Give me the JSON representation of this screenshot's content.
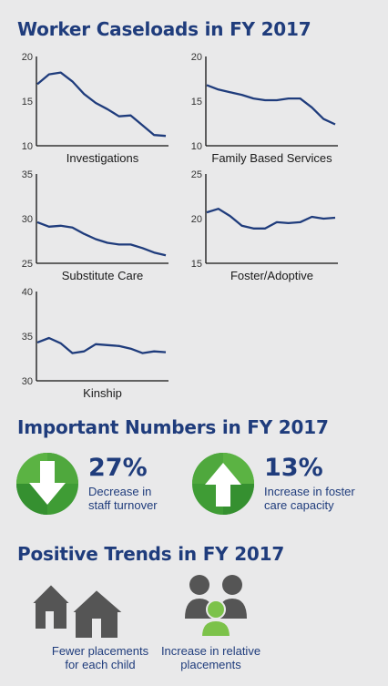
{
  "sections": {
    "caseloads_title": "Worker Caseloads in FY 2017",
    "numbers_title": "Important Numbers in FY 2017",
    "trends_title": "Positive Trends in FY 2017"
  },
  "chart_data": [
    {
      "type": "line",
      "title": "Investigations",
      "ylim": [
        10,
        20
      ],
      "yticks": [
        "20",
        "15",
        "10"
      ],
      "values": [
        16.9,
        18.0,
        18.2,
        17.2,
        15.8,
        14.8,
        14.1,
        13.3,
        13.4,
        12.3,
        11.2,
        11.1
      ],
      "color": "#1f3c7c"
    },
    {
      "type": "line",
      "title": "Family Based Services",
      "ylim": [
        10,
        20
      ],
      "yticks": [
        "20",
        "15",
        "10"
      ],
      "values": [
        16.8,
        16.3,
        16.0,
        15.7,
        15.3,
        15.1,
        15.1,
        15.3,
        15.3,
        14.3,
        13.0,
        12.4
      ],
      "color": "#1f3c7c"
    },
    {
      "type": "line",
      "title": "Substitute Care",
      "ylim": [
        25,
        35
      ],
      "yticks": [
        "35",
        "30",
        "25"
      ],
      "values": [
        29.6,
        29.1,
        29.2,
        29.0,
        28.3,
        27.7,
        27.3,
        27.1,
        27.1,
        26.7,
        26.2,
        25.9
      ],
      "color": "#1f3c7c"
    },
    {
      "type": "line",
      "title": "Foster/Adoptive",
      "ylim": [
        15,
        25
      ],
      "yticks": [
        "25",
        "20",
        "15"
      ],
      "values": [
        20.7,
        21.1,
        20.3,
        19.2,
        18.9,
        18.9,
        19.6,
        19.5,
        19.6,
        20.2,
        20.0,
        20.1
      ],
      "color": "#1f3c7c"
    },
    {
      "type": "line",
      "title": "Kinship",
      "ylim": [
        30,
        40
      ],
      "yticks": [
        "40",
        "35",
        "30"
      ],
      "values": [
        34.3,
        34.8,
        34.2,
        33.1,
        33.3,
        34.1,
        34.0,
        33.9,
        33.6,
        33.1,
        33.3,
        33.2
      ],
      "color": "#1f3c7c"
    }
  ],
  "stats": [
    {
      "value": "27%",
      "line1": "Decrease in",
      "line2": "staff turnover",
      "icon": "down-arrow-icon"
    },
    {
      "value": "13%",
      "line1": "Increase in foster",
      "line2": "care capacity",
      "icon": "up-arrow-icon"
    }
  ],
  "trends": [
    {
      "line1": "Fewer placements",
      "line2": "for each child",
      "icon": "houses-icon"
    },
    {
      "line1": "Increase in relative",
      "line2": "placements",
      "icon": "people-icon"
    }
  ],
  "colors": {
    "navy": "#1f3c7c",
    "green": "#3f9c35",
    "green_light": "#7cc24a",
    "gray_icon": "#555555"
  }
}
